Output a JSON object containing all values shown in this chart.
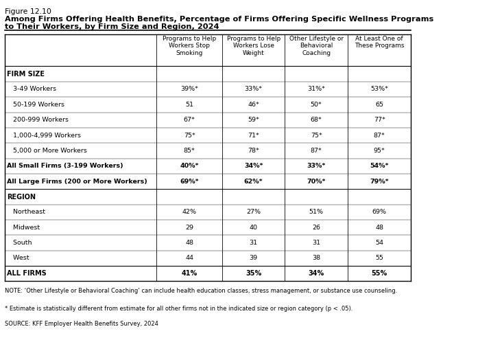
{
  "figure_label": "Figure 12.10",
  "title_line1": "Among Firms Offering Health Benefits, Percentage of Firms Offering Specific Wellness Programs",
  "title_line2": "to Their Workers, by Firm Size and Region, 2024",
  "col_headers": [
    "Programs to Help\nWorkers Stop\nSmoking",
    "Programs to Help\nWorkers Lose\nWeight",
    "Other Lifestyle or\nBehavioral\nCoaching",
    "At Least One of\nThese Programs"
  ],
  "sections": [
    {
      "section_label": "FIRM SIZE",
      "rows": [
        {
          "label": "   3-49 Workers",
          "bold": false,
          "values": [
            "39%*",
            "33%*",
            "31%*",
            "53%*"
          ]
        },
        {
          "label": "   50-199 Workers",
          "bold": false,
          "values": [
            "51",
            "46*",
            "50*",
            "65"
          ]
        },
        {
          "label": "   200-999 Workers",
          "bold": false,
          "values": [
            "67*",
            "59*",
            "68*",
            "77*"
          ]
        },
        {
          "label": "   1,000-4,999 Workers",
          "bold": false,
          "values": [
            "75*",
            "71*",
            "75*",
            "87*"
          ]
        },
        {
          "label": "   5,000 or More Workers",
          "bold": false,
          "values": [
            "85*",
            "78*",
            "87*",
            "95*"
          ]
        },
        {
          "label": "All Small Firms (3-199 Workers)",
          "bold": true,
          "values": [
            "40%*",
            "34%*",
            "33%*",
            "54%*"
          ]
        },
        {
          "label": "All Large Firms (200 or More Workers)",
          "bold": true,
          "values": [
            "69%*",
            "62%*",
            "70%*",
            "79%*"
          ]
        }
      ]
    },
    {
      "section_label": "REGION",
      "rows": [
        {
          "label": "   Northeast",
          "bold": false,
          "values": [
            "42%",
            "27%",
            "51%",
            "69%"
          ]
        },
        {
          "label": "   Midwest",
          "bold": false,
          "values": [
            "29",
            "40",
            "26",
            "48"
          ]
        },
        {
          "label": "   South",
          "bold": false,
          "values": [
            "48",
            "31",
            "31",
            "54"
          ]
        },
        {
          "label": "   West",
          "bold": false,
          "values": [
            "44",
            "39",
            "38",
            "55"
          ]
        }
      ]
    }
  ],
  "total_row": {
    "label": "ALL FIRMS",
    "values": [
      "41%",
      "35%",
      "34%",
      "55%"
    ]
  },
  "note1": "NOTE: ‘Other Lifestyle or Behavioral Coaching’ can include health education classes, stress management, or substance use counseling.",
  "note2": "* Estimate is statistically different from estimate for all other firms not in the indicated size or region category (p < .05).",
  "source": "SOURCE: KFF Employer Health Benefits Survey, 2024",
  "bg_color": "#FFFFFF",
  "text_color": "#000000"
}
